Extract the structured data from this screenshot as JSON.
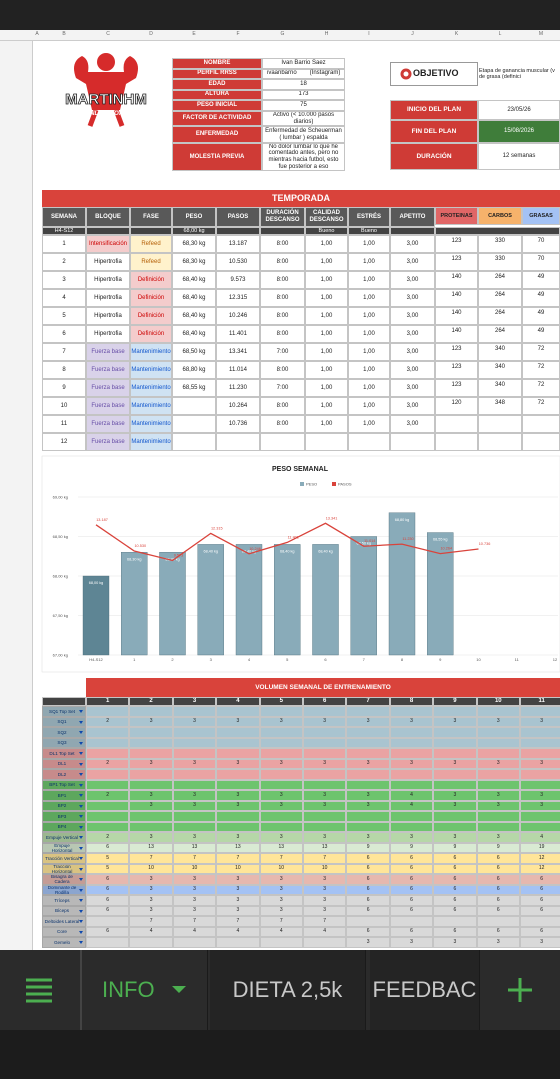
{
  "sheet": {
    "columns": [
      "A",
      "B",
      "C",
      "D",
      "E",
      "F",
      "G",
      "H",
      "I",
      "J",
      "K",
      "L",
      "M"
    ]
  },
  "logo": {
    "title": "MARTINHM",
    "subtitle": "ONLINE COACHING"
  },
  "profile": [
    {
      "label": "NOMBRE",
      "value": "Ivan Barrio Saez"
    },
    {
      "label": "PERFIL RRSS",
      "value": "ivaanbarrio",
      "note": "(Instagram)"
    },
    {
      "label": "EDAD",
      "value": 18
    },
    {
      "label": "ALTURA",
      "value": 173
    },
    {
      "label": "PESO INICIAL",
      "value": 75
    },
    {
      "label": "FACTOR DE ACTIVIDAD",
      "value": "Activo (< 10.000 pasos diarios)"
    },
    {
      "label": "ENFERMEDAD",
      "value": "Enfermedad de Scheuerman ( lumbar ) espalda"
    },
    {
      "label": "MOLESTIA PREVIA",
      "value": "No dolor lumbar lo que he comentado antes, pero no mientras hacia futbol, esto fue posterior a eso"
    }
  ],
  "objective": {
    "label": "OBJETIVO",
    "text": "Etapa de ganancia muscular (v de grasa (definici"
  },
  "plan": [
    {
      "label": "INICIO DEL PLAN",
      "value": "23/05/26",
      "color": "#ffffff"
    },
    {
      "label": "FIN DEL PLAN",
      "value": "15/08/2026",
      "color": "#3f7d3a"
    },
    {
      "label": "DURACIÓN",
      "value": "12 semanas",
      "color": "#ffffff"
    }
  ],
  "season": {
    "title": "TEMPORADA",
    "headers": [
      "SEMANA",
      "BLOQUE",
      "FASE",
      "PESO",
      "PASOS",
      "DURACIÓN DESCANSO",
      "CALIDAD DESCANSO",
      "ESTRÉS",
      "APETITO"
    ],
    "macro_headers": [
      {
        "name": "PROTEINAS",
        "color": "#e06666"
      },
      {
        "name": "CARBOS",
        "color": "#f6b26b"
      },
      {
        "name": "GRASAS",
        "color": "#a4c2f4"
      }
    ],
    "start": [
      "H4-S12",
      null,
      null,
      "68,00 kg",
      null,
      null,
      "Bueno",
      "Bueno",
      null
    ],
    "palette": {
      "Intensificación": [
        "#f4cccc",
        "#cc0000"
      ],
      "Refeed": [
        "#fff2cc",
        "#b45f06"
      ],
      "Definición": [
        "#f4cccc",
        "#cc0000"
      ],
      "Mantenimiento": [
        "#cfe2f3",
        "#1155cc"
      ],
      "Fuerza base": [
        "#d9d2e9",
        "#674ea7"
      ]
    },
    "rows": [
      [
        1,
        "Intensificación",
        "Refeed",
        "68,30 kg",
        "13.187",
        "8:00",
        "1,00",
        "1,00",
        "3,00",
        123,
        330,
        70
      ],
      [
        2,
        "Hipertrofia",
        "Refeed",
        "68,30 kg",
        "10.530",
        "8:00",
        "1,00",
        "1,00",
        "3,00",
        123,
        330,
        70
      ],
      [
        3,
        "Hipertrofia",
        "Definición",
        "68,40 kg",
        "9.573",
        "8:00",
        "1,00",
        "1,00",
        "3,00",
        140,
        264,
        49
      ],
      [
        4,
        "Hipertrofia",
        "Definición",
        "68,40 kg",
        "12.315",
        "8:00",
        "1,00",
        "1,00",
        "3,00",
        140,
        264,
        49
      ],
      [
        5,
        "Hipertrofia",
        "Definición",
        "68,40 kg",
        "10.246",
        "8:00",
        "1,00",
        "1,00",
        "3,00",
        140,
        264,
        49
      ],
      [
        6,
        "Hipertrofia",
        "Definición",
        "68,40 kg",
        "11.401",
        "8:00",
        "1,00",
        "1,00",
        "3,00",
        140,
        264,
        49
      ],
      [
        7,
        "Fuerza base",
        "Mantenimiento",
        "68,50 kg",
        "13.341",
        "7:00",
        "1,00",
        "1,00",
        "3,00",
        123,
        340,
        72
      ],
      [
        8,
        "Fuerza base",
        "Mantenimiento",
        "68,80 kg",
        "11.014",
        "8:00",
        "1,00",
        "1,00",
        "3,00",
        123,
        340,
        72
      ],
      [
        9,
        "Fuerza base",
        "Mantenimiento",
        "68,55 kg",
        "11.230",
        "7:00",
        "1,00",
        "1,00",
        "3,00",
        123,
        340,
        72
      ],
      [
        10,
        "Fuerza base",
        "Mantenimiento",
        null,
        "10.264",
        "8:00",
        "1,00",
        "1,00",
        "3,00",
        120,
        348,
        72
      ],
      [
        11,
        "Fuerza base",
        "Mantenimiento",
        null,
        "10.736",
        "8:00",
        "1,00",
        "1,00",
        "3,00",
        null,
        null,
        null
      ],
      [
        12,
        "Fuerza base",
        "Mantenimiento",
        null,
        null,
        null,
        null,
        null,
        null,
        null,
        null,
        null
      ]
    ]
  },
  "chart_data": {
    "type": "bar",
    "title": "PESO SEMANAL",
    "legend": "top",
    "grid": true,
    "categories": [
      "H4-S12",
      "1",
      "2",
      "3",
      "4",
      "5",
      "6",
      "7",
      "8",
      "9",
      "10",
      "11",
      "12"
    ],
    "series": [
      {
        "name": "PESO",
        "color": "#89abb9",
        "colors": [
          "#5e8594",
          "#89abb9",
          "#89abb9",
          "#89abb9",
          "#89abb9",
          "#89abb9",
          "#89abb9",
          "#89abb9",
          "#89abb9",
          "#89abb9",
          "#89abb9",
          "#89abb9",
          "#89abb9"
        ],
        "values": [
          68.0,
          68.3,
          68.3,
          68.4,
          68.4,
          68.4,
          68.4,
          68.5,
          68.8,
          68.55,
          null,
          null,
          null
        ],
        "value_labels": [
          "68,00 kg",
          "68,30 kg",
          "68,30 kg",
          "68,40 kg",
          "68,40 kg",
          "68,40 kg",
          "68,40 kg",
          "68,50 kg",
          "68,80 kg",
          "68,55 kg",
          null,
          null,
          null
        ]
      },
      {
        "name": "PASOS",
        "type": "line",
        "axis": "y2",
        "color": "#d9433b",
        "values": [
          13187,
          10530,
          9573,
          12315,
          10246,
          11401,
          13341,
          11014,
          11230,
          10264,
          10736,
          null,
          null
        ],
        "value_labels": [
          "13.187",
          "10.530",
          "9.573",
          "12.315",
          "10.246",
          "11.401",
          "13.341",
          "11.014",
          "11.230",
          "10.264",
          "10.736",
          null,
          null
        ]
      }
    ],
    "ylim": [
      67,
      69
    ],
    "yticks": [
      {
        "value": 67,
        "label": "67,00 kg"
      },
      {
        "value": 67.5,
        "label": "67,50 kg"
      },
      {
        "value": 68,
        "label": "68,00 kg"
      },
      {
        "value": 68.5,
        "label": "68,50 kg"
      },
      {
        "value": 69,
        "label": "69,00 kg"
      }
    ],
    "y2lim": [
      0,
      16000
    ]
  },
  "volume": {
    "title": "VOLUMEN SEMANAL DE ENTRENAMIENTO",
    "weeks": [
      1,
      2,
      3,
      4,
      5,
      6,
      7,
      8,
      9,
      10,
      11
    ],
    "rows": [
      {
        "label": "SQ1 Top Set",
        "color": "#a9c4d0",
        "values": [
          null,
          null,
          null,
          null,
          null,
          null,
          null,
          null,
          null,
          null,
          null
        ]
      },
      {
        "label": "SQ1",
        "color": "#a9c4d0",
        "values": [
          2,
          3,
          3,
          3,
          3,
          3,
          3,
          3,
          3,
          3,
          3
        ]
      },
      {
        "label": "SQ2",
        "color": "#a9c4d0",
        "values": [
          null,
          null,
          null,
          null,
          null,
          null,
          null,
          null,
          null,
          null,
          null
        ]
      },
      {
        "label": "SQ3",
        "color": "#a9c4d0",
        "values": [
          null,
          null,
          null,
          null,
          null,
          null,
          null,
          null,
          null,
          null,
          null
        ]
      },
      {
        "label": "DL1 Top Set",
        "color": "#eaa3a3",
        "values": [
          null,
          null,
          null,
          null,
          null,
          null,
          null,
          null,
          null,
          null,
          null
        ]
      },
      {
        "label": "DL1",
        "color": "#eaa3a3",
        "values": [
          2,
          3,
          3,
          3,
          3,
          3,
          3,
          3,
          3,
          3,
          3
        ]
      },
      {
        "label": "DL2",
        "color": "#eaa3a3",
        "values": [
          null,
          null,
          null,
          null,
          null,
          null,
          null,
          null,
          null,
          null,
          null
        ]
      },
      {
        "label": "BP1 Top Set",
        "color": "#6dc46d",
        "values": [
          null,
          null,
          null,
          null,
          null,
          null,
          null,
          null,
          null,
          null,
          null
        ]
      },
      {
        "label": "BP1",
        "color": "#6dc46d",
        "values": [
          2,
          3,
          3,
          3,
          3,
          3,
          3,
          4,
          3,
          3,
          3
        ]
      },
      {
        "label": "BP2",
        "color": "#6dc46d",
        "values": [
          null,
          3,
          3,
          3,
          3,
          3,
          3,
          4,
          3,
          3,
          3
        ]
      },
      {
        "label": "BP3",
        "color": "#6dc46d",
        "values": [
          null,
          null,
          null,
          null,
          null,
          null,
          null,
          null,
          null,
          null,
          null
        ]
      },
      {
        "label": "BP4",
        "color": "#6dc46d",
        "values": [
          null,
          null,
          null,
          null,
          null,
          null,
          null,
          null,
          null,
          null,
          null
        ]
      },
      {
        "label": "Empuje Vertical",
        "color": "#b6d7a8",
        "values": [
          2,
          3,
          3,
          3,
          3,
          3,
          3,
          3,
          3,
          3,
          4
        ]
      },
      {
        "label": "Empuje Horizontal",
        "color": "#d9ead3",
        "values": [
          6,
          13,
          13,
          13,
          13,
          13,
          9,
          9,
          9,
          9,
          19
        ]
      },
      {
        "label": "Tracción Vertical",
        "color": "#ffe599",
        "values": [
          5,
          7,
          7,
          7,
          7,
          7,
          6,
          6,
          6,
          6,
          12
        ]
      },
      {
        "label": "Tracción Horizontal",
        "color": "#ffe599",
        "values": [
          5,
          10,
          10,
          10,
          10,
          10,
          6,
          6,
          6,
          6,
          12
        ]
      },
      {
        "label": "Bisagra de Cadera",
        "color": "#e6b8af",
        "values": [
          6,
          3,
          3,
          3,
          3,
          3,
          6,
          6,
          6,
          6,
          6
        ]
      },
      {
        "label": "Dominante de Rodilla",
        "color": "#a4c2f4",
        "values": [
          6,
          3,
          3,
          3,
          3,
          3,
          6,
          6,
          6,
          6,
          6
        ]
      },
      {
        "label": "Tríceps",
        "color": "#d9d9d9",
        "values": [
          6,
          3,
          3,
          3,
          3,
          3,
          6,
          6,
          6,
          6,
          6
        ]
      },
      {
        "label": "Bíceps",
        "color": "#d9d9d9",
        "values": [
          6,
          3,
          3,
          3,
          3,
          3,
          6,
          6,
          6,
          6,
          6
        ]
      },
      {
        "label": "Deltoides Lateral",
        "color": "#d9d9d9",
        "values": [
          null,
          7,
          7,
          7,
          7,
          7,
          null,
          null,
          null,
          null,
          null
        ]
      },
      {
        "label": "Core",
        "color": "#d9d9d9",
        "values": [
          6,
          4,
          4,
          4,
          4,
          4,
          6,
          6,
          6,
          6,
          6
        ]
      },
      {
        "label": "Gemelo",
        "color": "#d9d9d9",
        "values": [
          null,
          null,
          null,
          null,
          null,
          null,
          3,
          3,
          3,
          3,
          3
        ]
      }
    ]
  },
  "tabs": [
    {
      "name": "INFO",
      "active": true
    },
    {
      "name": "DIETA 2,5k",
      "active": false
    },
    {
      "name": "FEEDBAC",
      "active": false
    }
  ]
}
